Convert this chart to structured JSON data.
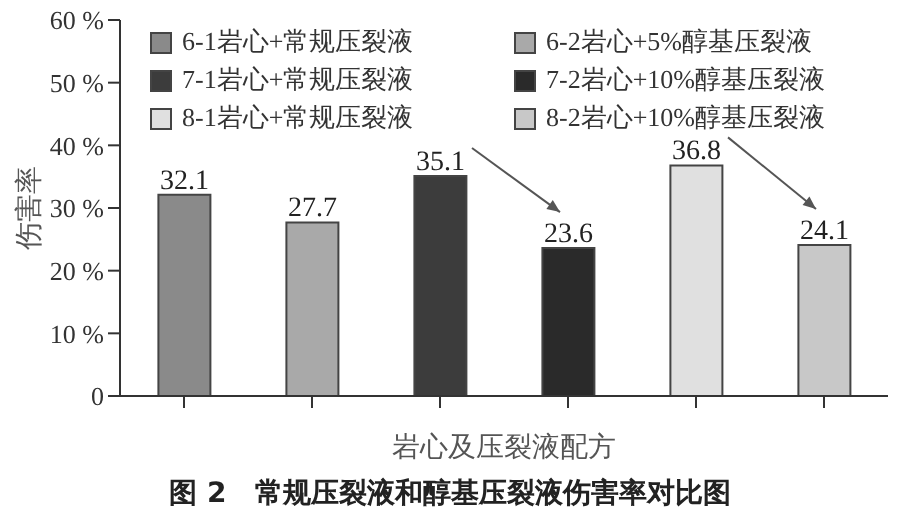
{
  "chart_data": {
    "type": "bar",
    "title": "图 2　常规压裂液和醇基压裂液伤害率对比图",
    "xlabel": "岩心及压裂液配方",
    "ylabel": "伤害率",
    "categories": [
      null,
      null,
      null,
      null,
      null,
      null
    ],
    "series": [
      {
        "name": "6-1岩心+常规压裂液",
        "color": "#8a8a8a",
        "values": [
          32.1,
          null,
          null,
          null,
          null,
          null
        ]
      },
      {
        "name": "6-2岩心+5%醇基压裂液",
        "color": "#a9a9a9",
        "values": [
          null,
          27.7,
          null,
          null,
          null,
          null
        ]
      },
      {
        "name": "7-1岩心+常规压裂液",
        "color": "#3c3c3c",
        "values": [
          null,
          null,
          35.1,
          null,
          null,
          null
        ]
      },
      {
        "name": "7-2岩心+10%醇基压裂液",
        "color": "#2a2a2a",
        "values": [
          null,
          null,
          null,
          23.6,
          null,
          null
        ]
      },
      {
        "name": "8-1岩心+常规压裂液",
        "color": "#e0e0e0",
        "values": [
          null,
          null,
          null,
          null,
          36.8,
          null
        ]
      },
      {
        "name": "8-2岩心+10%醇基压裂液",
        "color": "#c8c8c8",
        "values": [
          null,
          null,
          null,
          null,
          null,
          24.1
        ]
      }
    ],
    "stacked": true,
    "ylim": [
      0,
      60
    ],
    "yticks": [
      0,
      {
        "value": 10,
        "label": "10 %"
      },
      {
        "value": 20,
        "label": "20 %"
      },
      {
        "value": 30,
        "label": "30 %"
      },
      {
        "value": 40,
        "label": "40 %"
      },
      {
        "value": 50,
        "label": "50 %"
      },
      {
        "value": 60,
        "label": "60 %"
      }
    ],
    "data_labels": true,
    "legend": "top",
    "grid": false
  }
}
